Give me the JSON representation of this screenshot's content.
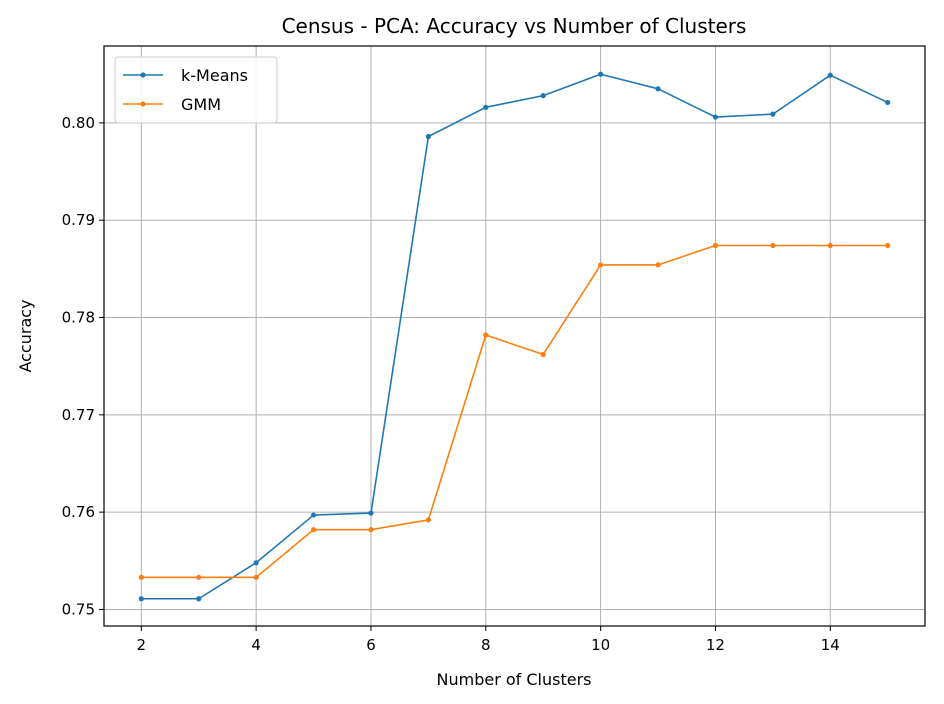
{
  "chart_data": {
    "type": "line",
    "title": "Census - PCA: Accuracy vs Number of Clusters",
    "xlabel": "Number of Clusters",
    "ylabel": "Accuracy",
    "xlim": [
      1.35,
      15.65
    ],
    "ylim": [
      0.7483,
      0.8079
    ],
    "xticks": [
      2,
      4,
      6,
      8,
      10,
      12,
      14
    ],
    "xtick_labels": [
      "2",
      "4",
      "6",
      "8",
      "10",
      "12",
      "14"
    ],
    "yticks": [
      0.75,
      0.76,
      0.77,
      0.78,
      0.79,
      0.8
    ],
    "ytick_labels": [
      "0.75",
      "0.76",
      "0.77",
      "0.78",
      "0.79",
      "0.80"
    ],
    "grid": true,
    "legend": "upper-left",
    "x": [
      2,
      3,
      4,
      5,
      6,
      7,
      8,
      9,
      10,
      11,
      12,
      13,
      14,
      15
    ],
    "series": [
      {
        "name": "k-Means",
        "color": "#1f77b4",
        "marker": "circle",
        "values": [
          0.7511,
          0.7511,
          0.7548,
          0.7597,
          0.7599,
          0.7986,
          0.8016,
          0.8028,
          0.805,
          0.8035,
          0.8006,
          0.8009,
          0.8049,
          0.8021
        ]
      },
      {
        "name": "GMM",
        "color": "#ff7f0e",
        "marker": "circle",
        "values": [
          0.7533,
          0.7533,
          0.7533,
          0.7582,
          0.7582,
          0.7592,
          0.7782,
          0.7762,
          0.7854,
          0.7854,
          0.7874,
          0.7874,
          0.7874,
          0.7874
        ]
      }
    ]
  }
}
